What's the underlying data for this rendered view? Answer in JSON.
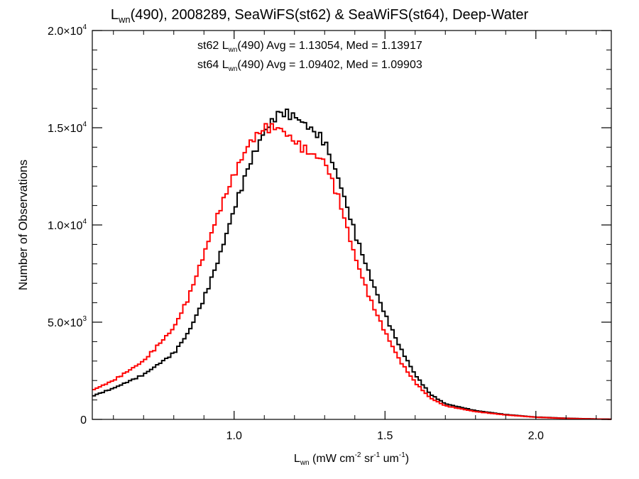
{
  "chart_data": {
    "type": "line",
    "title": {
      "main": "L",
      "sub": "wn",
      "rest": "(490), 2008289, SeaWiFS(st62) & SeaWiFS(st64), Deep-Water"
    },
    "xlabel": {
      "main": "L",
      "sub": "wn",
      "p1": " (mW cm",
      "s1": "-2",
      "p2": " sr",
      "s2": "-1",
      "p3": " um",
      "s3": "-1",
      "p4": ")"
    },
    "ylabel": "Number of Observations",
    "xlim": [
      0.53,
      2.25
    ],
    "ylim": [
      0,
      20000
    ],
    "x_ticks": [
      {
        "value": 1.0,
        "label": "1.0"
      },
      {
        "value": 1.5,
        "label": "1.5"
      },
      {
        "value": 2.0,
        "label": "2.0"
      }
    ],
    "y_ticks": [
      {
        "value": 0,
        "mant": "0",
        "exp": ""
      },
      {
        "value": 5000,
        "mant": "5.0×10",
        "exp": "3"
      },
      {
        "value": 10000,
        "mant": "1.0×10",
        "exp": "4"
      },
      {
        "value": 15000,
        "mant": "1.5×10",
        "exp": "4"
      },
      {
        "value": 20000,
        "mant": "2.0×10",
        "exp": "4"
      }
    ],
    "grid": false,
    "legend": [
      {
        "prefix": "st62 L",
        "sub": "wn",
        "suffix": "(490) Avg = 1.13054, Med = 1.13917",
        "color": "#000000"
      },
      {
        "prefix": "st64 L",
        "sub": "wn",
        "suffix": "(490) Avg = 1.09402, Med = 1.09903",
        "color": "#ff0000"
      }
    ],
    "series": [
      {
        "color": "#000000",
        "style": "histogram",
        "x": [
          0.53,
          0.6,
          0.7,
          0.8,
          0.85,
          0.9,
          0.95,
          1.0,
          1.05,
          1.1,
          1.15,
          1.2,
          1.25,
          1.3,
          1.35,
          1.4,
          1.45,
          1.5,
          1.55,
          1.6,
          1.65,
          1.7,
          1.8,
          1.9,
          2.0,
          2.1,
          2.2,
          2.25
        ],
        "y": [
          1200,
          1600,
          2300,
          3400,
          4500,
          6200,
          8300,
          10800,
          13100,
          14800,
          15800,
          15600,
          15000,
          14300,
          12200,
          9600,
          7400,
          5400,
          3700,
          2300,
          1300,
          800,
          450,
          250,
          120,
          60,
          20,
          10
        ]
      },
      {
        "color": "#ff0000",
        "style": "histogram",
        "x": [
          0.53,
          0.6,
          0.7,
          0.8,
          0.85,
          0.9,
          0.95,
          1.0,
          1.05,
          1.1,
          1.15,
          1.2,
          1.25,
          1.3,
          1.35,
          1.4,
          1.45,
          1.5,
          1.55,
          1.6,
          1.65,
          1.7,
          1.8,
          1.9,
          2.0,
          2.1,
          2.2,
          2.25
        ],
        "y": [
          1500,
          2000,
          3000,
          4700,
          6300,
          8500,
          10700,
          12600,
          14200,
          15000,
          15000,
          14300,
          13700,
          13300,
          11200,
          8400,
          6200,
          4500,
          3000,
          1900,
          1100,
          700,
          400,
          230,
          110,
          50,
          20,
          10
        ]
      }
    ]
  }
}
